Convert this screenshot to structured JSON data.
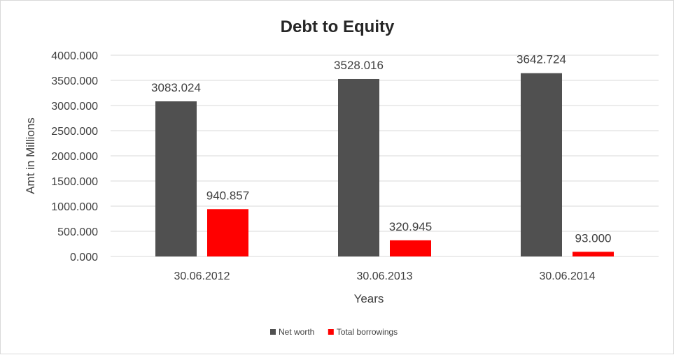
{
  "chart_data": {
    "type": "bar",
    "title": "Debt to Equity",
    "xlabel": "Years",
    "ylabel": "Amt in Millions",
    "categories": [
      "30.06.2012",
      "30.06.2013",
      "30.06.2014"
    ],
    "series": [
      {
        "name": "Net worth",
        "color": "#505050",
        "values": [
          3083.024,
          3528.016,
          3642.724
        ],
        "labels": [
          "3083.024",
          "3528.016",
          "3642.724"
        ]
      },
      {
        "name": "Total borrowings",
        "color": "#ff0000",
        "values": [
          940.857,
          320.945,
          93.0
        ],
        "labels": [
          "940.857",
          "320.945",
          "93.000"
        ]
      }
    ],
    "ylim": [
      0,
      4000
    ],
    "yticks": [
      0,
      500,
      1000,
      1500,
      2000,
      2500,
      3000,
      3500,
      4000
    ],
    "ytick_labels": [
      "0.000",
      "500.000",
      "1000.000",
      "1500.000",
      "2000.000",
      "2500.000",
      "3000.000",
      "3500.000",
      "4000.000"
    ],
    "grid": true,
    "legend_position": "bottom"
  }
}
